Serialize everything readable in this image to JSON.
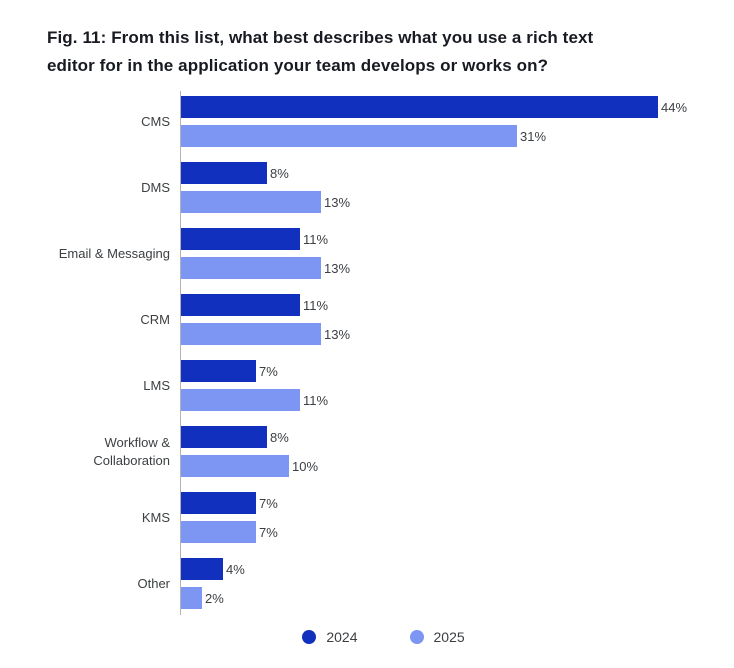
{
  "chart_data": {
    "type": "bar",
    "orientation": "horizontal",
    "title": "Fig. 11: From this list, what best describes what you use a rich text editor for in the application your team develops or works on?",
    "categories": [
      "CMS",
      "DMS",
      "Email & Messaging",
      "CRM",
      "LMS",
      "Workflow & Collaboration",
      "KMS",
      "Other"
    ],
    "series": [
      {
        "name": "2024",
        "color": "#1130bd",
        "values": [
          44,
          8,
          11,
          11,
          7,
          8,
          7,
          4
        ]
      },
      {
        "name": "2025",
        "color": "#7d96f3",
        "values": [
          31,
          13,
          13,
          13,
          11,
          10,
          7,
          2
        ]
      }
    ],
    "value_suffix": "%",
    "xlim": [
      0,
      46
    ],
    "grid": false,
    "legend_position": "bottom",
    "axis_line_color": "#b0b3b8"
  }
}
